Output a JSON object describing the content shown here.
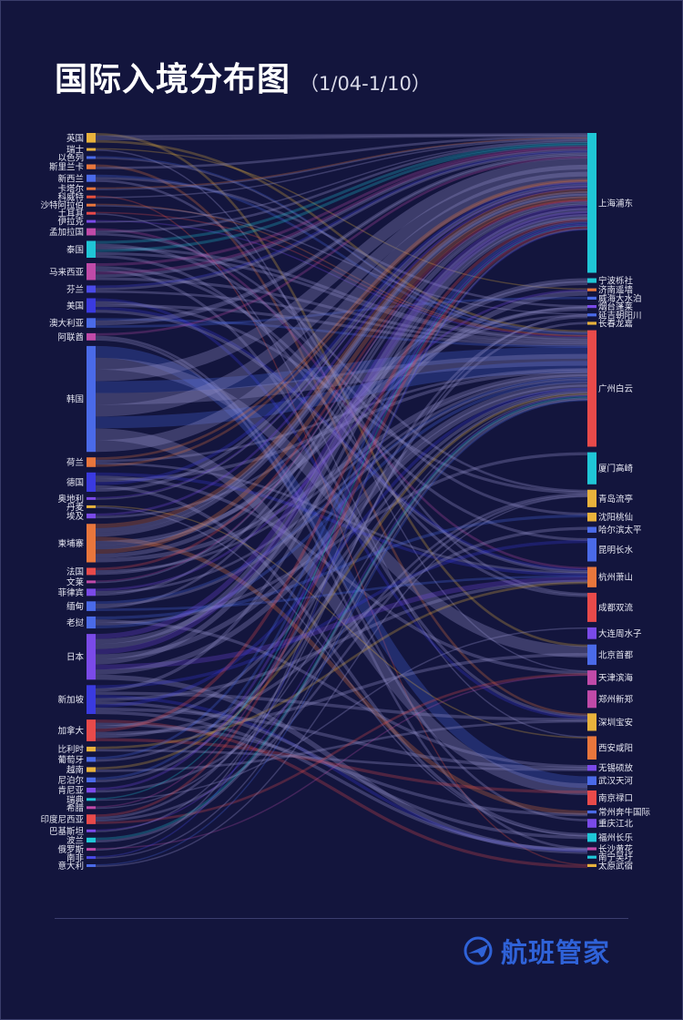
{
  "title": "国际入境分布图",
  "subtitle": "（1/04-1/10）",
  "brand": "航班管家",
  "colors": {
    "background": "#13153d",
    "link": "#8a86c0",
    "brand": "#2f62d8"
  },
  "chart_data": {
    "type": "sankey",
    "sources": [
      {
        "name": "英国",
        "value": 2,
        "color": "#e8b23c"
      },
      {
        "name": "瑞士",
        "value": 0.5,
        "color": "#e8b23c"
      },
      {
        "name": "以色列",
        "value": 0.5,
        "color": "#4a6ae8"
      },
      {
        "name": "斯里兰卡",
        "value": 1,
        "color": "#e8763c"
      },
      {
        "name": "新西兰",
        "value": 1.5,
        "color": "#4a6ae8"
      },
      {
        "name": "卡塔尔",
        "value": 0.5,
        "color": "#e8763c"
      },
      {
        "name": "科威特",
        "value": 0.5,
        "color": "#e8503c"
      },
      {
        "name": "沙特阿拉伯",
        "value": 0.5,
        "color": "#e8763c"
      },
      {
        "name": "土耳其",
        "value": 0.5,
        "color": "#e84a4a"
      },
      {
        "name": "伊拉克",
        "value": 0.5,
        "color": "#7a4ae8"
      },
      {
        "name": "孟加拉国",
        "value": 1.5,
        "color": "#c04aa8"
      },
      {
        "name": "泰国",
        "value": 3.5,
        "color": "#1fc6d6"
      },
      {
        "name": "马来西亚",
        "value": 3.5,
        "color": "#c04aa8"
      },
      {
        "name": "芬兰",
        "value": 1.5,
        "color": "#4a4ae8"
      },
      {
        "name": "美国",
        "value": 3,
        "color": "#3a3ae0"
      },
      {
        "name": "澳大利亚",
        "value": 2,
        "color": "#4a6ae8"
      },
      {
        "name": "阿联酋",
        "value": 1.5,
        "color": "#c04aa8"
      },
      {
        "name": "韩国",
        "value": 22,
        "color": "#4a6ae8"
      },
      {
        "name": "荷兰",
        "value": 2,
        "color": "#e8763c"
      },
      {
        "name": "德国",
        "value": 4,
        "color": "#3a3ae0"
      },
      {
        "name": "奥地利",
        "value": 0.5,
        "color": "#7a4ae8"
      },
      {
        "name": "丹麦",
        "value": 0.5,
        "color": "#e8b23c"
      },
      {
        "name": "埃及",
        "value": 1,
        "color": "#7a4ae8"
      },
      {
        "name": "柬埔寨",
        "value": 8,
        "color": "#e8763c"
      },
      {
        "name": "法国",
        "value": 1.5,
        "color": "#e84a4a"
      },
      {
        "name": "文莱",
        "value": 0.5,
        "color": "#c04aa8"
      },
      {
        "name": "菲律宾",
        "value": 1.5,
        "color": "#7a4ae8"
      },
      {
        "name": "缅甸",
        "value": 2,
        "color": "#4a6ae8"
      },
      {
        "name": "老挝",
        "value": 2.5,
        "color": "#4a6ae8"
      },
      {
        "name": "日本",
        "value": 9.5,
        "color": "#7a4ae8"
      },
      {
        "name": "新加坡",
        "value": 6,
        "color": "#3a3ae0"
      },
      {
        "name": "加拿大",
        "value": 4.5,
        "color": "#e84a4a"
      },
      {
        "name": "比利时",
        "value": 1,
        "color": "#e8b23c"
      },
      {
        "name": "葡萄牙",
        "value": 1,
        "color": "#4a6ae8"
      },
      {
        "name": "越南",
        "value": 1,
        "color": "#e8b23c"
      },
      {
        "name": "尼泊尔",
        "value": 1,
        "color": "#4a6ae8"
      },
      {
        "name": "肯尼亚",
        "value": 1,
        "color": "#7a4ae8"
      },
      {
        "name": "瑞典",
        "value": 0.5,
        "color": "#1fc6d6"
      },
      {
        "name": "希腊",
        "value": 0.5,
        "color": "#c04aa8"
      },
      {
        "name": "印度尼西亚",
        "value": 2,
        "color": "#e84a4a"
      },
      {
        "name": "巴基斯坦",
        "value": 0.5,
        "color": "#7a4ae8"
      },
      {
        "name": "波兰",
        "value": 1,
        "color": "#1fc6d6"
      },
      {
        "name": "俄罗斯",
        "value": 0.5,
        "color": "#c04aa8"
      },
      {
        "name": "南非",
        "value": 0.5,
        "color": "#4a4ae8"
      },
      {
        "name": "意大利",
        "value": 0.5,
        "color": "#4a6ae8"
      }
    ],
    "targets": [
      {
        "name": "上海浦东",
        "value": 24,
        "color": "#1fc6d6"
      },
      {
        "name": "宁波栎社",
        "value": 0.8,
        "color": "#1fc6d6"
      },
      {
        "name": "济南遥墙",
        "value": 0.5,
        "color": "#e8763c"
      },
      {
        "name": "威海大水泊",
        "value": 0.5,
        "color": "#4a6ae8"
      },
      {
        "name": "烟台蓬莱",
        "value": 0.5,
        "color": "#7a4ae8"
      },
      {
        "name": "延吉朝阳川",
        "value": 0.5,
        "color": "#4a6ae8"
      },
      {
        "name": "长春龙嘉",
        "value": 0.5,
        "color": "#e8b23c"
      },
      {
        "name": "广州白云",
        "value": 20,
        "color": "#e84a4a"
      },
      {
        "name": "厦门高崎",
        "value": 5.5,
        "color": "#1fc6d6"
      },
      {
        "name": "青岛流亭",
        "value": 3,
        "color": "#e8b23c"
      },
      {
        "name": "沈阳桃仙",
        "value": 1.5,
        "color": "#e8b23c"
      },
      {
        "name": "哈尔滨太平",
        "value": 1,
        "color": "#4a6ae8"
      },
      {
        "name": "昆明长水",
        "value": 4,
        "color": "#4a6ae8"
      },
      {
        "name": "杭州萧山",
        "value": 3.5,
        "color": "#e8763c"
      },
      {
        "name": "成都双流",
        "value": 5,
        "color": "#e84a4a"
      },
      {
        "name": "大连周水子",
        "value": 2,
        "color": "#7a4ae8"
      },
      {
        "name": "北京首都",
        "value": 3.5,
        "color": "#4a6ae8"
      },
      {
        "name": "天津滨海",
        "value": 2.5,
        "color": "#c04aa8"
      },
      {
        "name": "郑州新郑",
        "value": 3,
        "color": "#c04aa8"
      },
      {
        "name": "深圳宝安",
        "value": 3,
        "color": "#e8b23c"
      },
      {
        "name": "西安咸阳",
        "value": 4,
        "color": "#e8763c"
      },
      {
        "name": "无锡硕放",
        "value": 1,
        "color": "#7a4ae8"
      },
      {
        "name": "武汉天河",
        "value": 1.5,
        "color": "#4a6ae8"
      },
      {
        "name": "南京禄口",
        "value": 2.5,
        "color": "#e84a4a"
      },
      {
        "name": "常州奔牛国际",
        "value": 0.5,
        "color": "#4a6ae8"
      },
      {
        "name": "重庆江北",
        "value": 1.5,
        "color": "#7a4ae8"
      },
      {
        "name": "福州长乐",
        "value": 1.5,
        "color": "#1fc6d6"
      },
      {
        "name": "长沙黄花",
        "value": 0.5,
        "color": "#c04aa8"
      },
      {
        "name": "南宁吴圩",
        "value": 0.5,
        "color": "#1fc6d6"
      },
      {
        "name": "太原武宿",
        "value": 0.5,
        "color": "#e8b23c"
      }
    ]
  }
}
